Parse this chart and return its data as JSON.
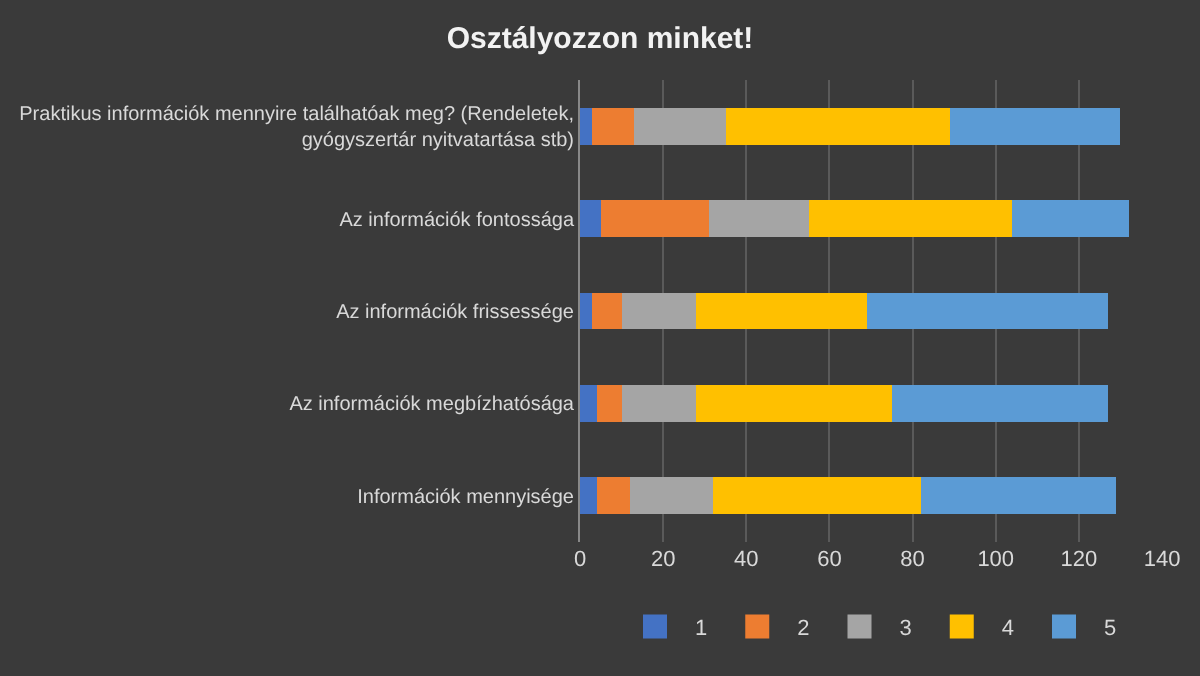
{
  "chart_data": {
    "type": "bar",
    "orientation": "horizontal",
    "stacked": true,
    "title": "Osztályozzon minket!",
    "categories": [
      "Praktikus információk mennyire találhatóak meg? (Rendeletek, gyógyszertár nyitvatartása stb)",
      "Az információk fontossága",
      "Az információk frissessége",
      "Az információk megbízhatósága",
      "Információk mennyisége"
    ],
    "series": [
      {
        "name": "1",
        "color": "#4472c4",
        "values": [
          3,
          5,
          3,
          4,
          4
        ]
      },
      {
        "name": "2",
        "color": "#ed7d31",
        "values": [
          10,
          26,
          7,
          6,
          8
        ]
      },
      {
        "name": "3",
        "color": "#a5a5a5",
        "values": [
          22,
          24,
          18,
          18,
          20
        ]
      },
      {
        "name": "4",
        "color": "#ffc000",
        "values": [
          54,
          49,
          41,
          47,
          50
        ]
      },
      {
        "name": "5",
        "color": "#5b9bd5",
        "values": [
          41,
          28,
          58,
          52,
          47
        ]
      }
    ],
    "xlim": [
      0,
      140
    ],
    "xticks": [
      0,
      20,
      40,
      60,
      80,
      100,
      120,
      140
    ],
    "grid": "x",
    "legend": "bottom"
  }
}
